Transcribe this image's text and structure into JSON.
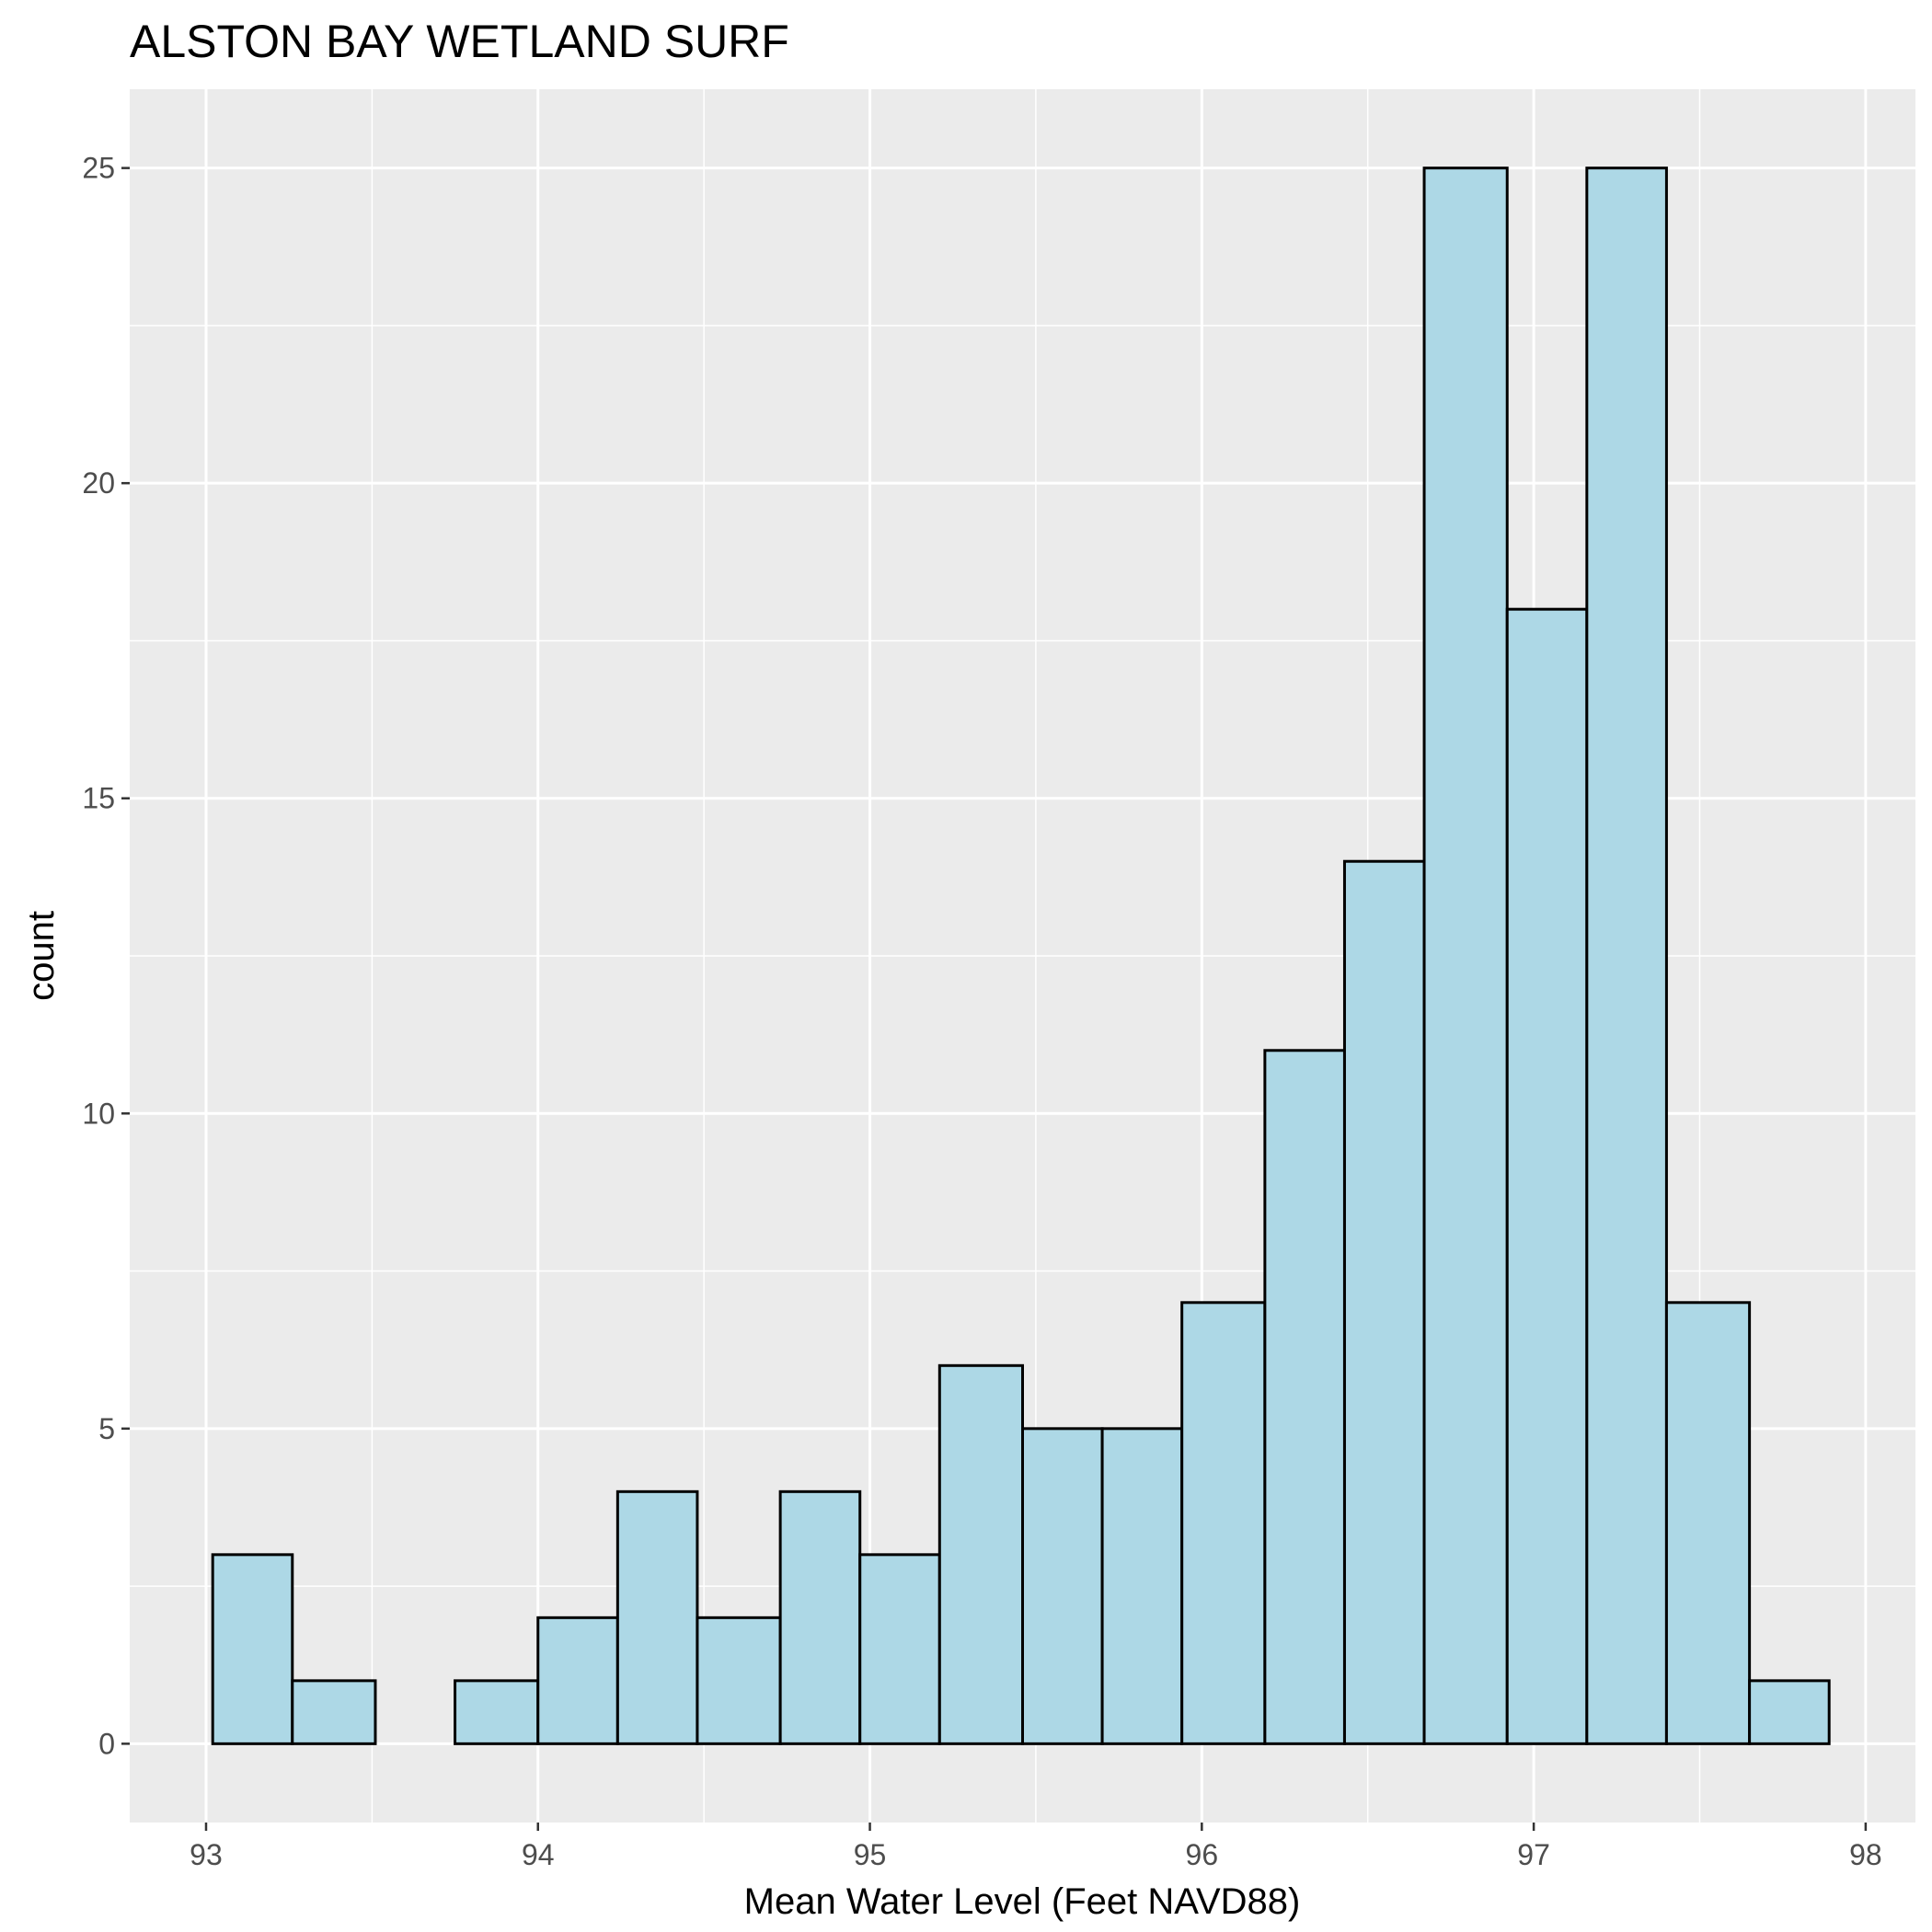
{
  "chart_data": {
    "type": "histogram",
    "title": "ALSTON BAY WETLAND SURF",
    "xlabel": "Mean Water Level (Feet NAVD88)",
    "ylabel": "count",
    "xlim": [
      92.77,
      98.15
    ],
    "ylim": [
      -1.25,
      26.25
    ],
    "x_ticks": [
      "93",
      "94",
      "95",
      "96",
      "97",
      "98"
    ],
    "y_ticks": [
      "0",
      "5",
      "10",
      "15",
      "20",
      "25"
    ],
    "bin_edges": [
      93.02,
      93.26,
      93.51,
      93.75,
      94.0,
      94.24,
      94.48,
      94.73,
      94.97,
      95.21,
      95.46,
      95.7,
      95.94,
      96.19,
      96.43,
      96.67,
      96.92,
      97.16,
      97.4,
      97.65,
      97.89
    ],
    "counts": [
      3,
      1,
      0,
      1,
      2,
      4,
      2,
      4,
      3,
      6,
      5,
      5,
      7,
      11,
      14,
      25,
      18,
      25,
      7,
      1
    ],
    "bar_fill": "#add8e6",
    "bar_stroke": "#000000",
    "panel_background": "#ebebeb",
    "grid": true
  }
}
